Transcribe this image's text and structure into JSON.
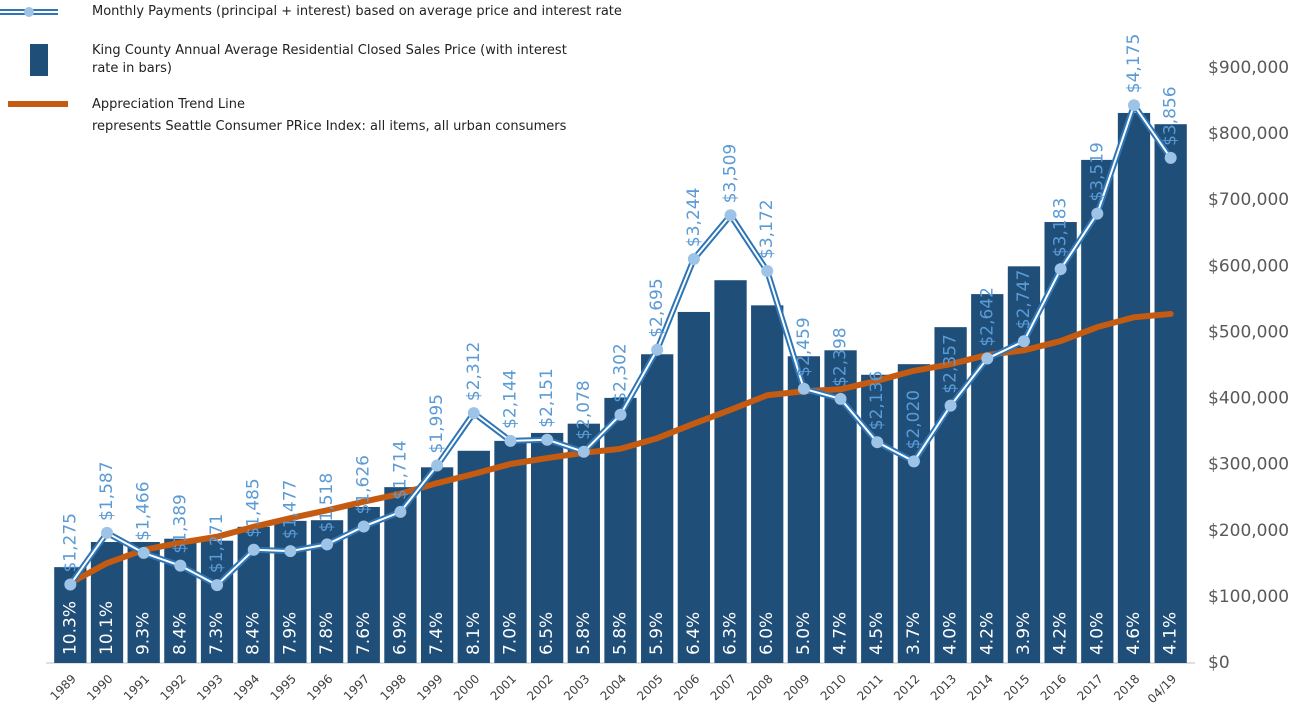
{
  "chart_data": {
    "type": "bar",
    "categories": [
      "1989",
      "1990",
      "1991",
      "1992",
      "1993",
      "1994",
      "1995",
      "1996",
      "1997",
      "1998",
      "1999",
      "2000",
      "2001",
      "2002",
      "2003",
      "2004",
      "2005",
      "2006",
      "2007",
      "2008",
      "2009",
      "2010",
      "2011",
      "2012",
      "2013",
      "2014",
      "2015",
      "2016",
      "2017",
      "2018",
      "04/19"
    ],
    "series": [
      {
        "name": "Monthly Payments (principal + interest) based on average price and interest rate",
        "type": "line",
        "axis": "y2",
        "color": "#2e75b6",
        "marker_color": "#9dc3e6",
        "label_color": "#5b9bd5",
        "values": [
          1275,
          1587,
          1466,
          1389,
          1271,
          1485,
          1477,
          1518,
          1626,
          1714,
          1995,
          2312,
          2144,
          2151,
          2078,
          2302,
          2695,
          3244,
          3509,
          3172,
          2459,
          2398,
          2136,
          2020,
          2357,
          2642,
          2747,
          3183,
          3519,
          4175,
          3856
        ],
        "value_labels": [
          "$1,275",
          "$1,587",
          "$1,466",
          "$1,389",
          "$1,271",
          "$1,485",
          "$1,477",
          "$1,518",
          "$1,626",
          "$1,714",
          "$1,995",
          "$2,312",
          "$2,144",
          "$2,151",
          "$2,078",
          "$2,302",
          "$2,695",
          "$3,244",
          "$3,509",
          "$3,172",
          "$2,459",
          "$2,398",
          "$2,136",
          "$2,020",
          "$2,357",
          "$2,642",
          "$2,747",
          "$3,183",
          "$3,519",
          "$4,175",
          "$3,856"
        ]
      },
      {
        "name": "King County Annual Average Residential Closed Sales Price (with interest rate in bars)",
        "type": "bar",
        "color": "#1f4e79",
        "values": [
          145000,
          183000,
          183000,
          188000,
          185000,
          206000,
          215000,
          216000,
          236000,
          266000,
          296000,
          321000,
          336000,
          348000,
          362000,
          401000,
          467000,
          531000,
          579000,
          541000,
          464000,
          473000,
          436000,
          452000,
          508000,
          558000,
          600000,
          667000,
          761000,
          832000,
          815000
        ]
      },
      {
        "name": "Appreciation Trend Line",
        "description": "represents Seattle Consumer PRice Index: all items, all urban consumers",
        "type": "line",
        "color": "#c55a11",
        "values": [
          121000,
          151000,
          171000,
          182000,
          191000,
          206000,
          219000,
          231000,
          244000,
          256000,
          272000,
          286000,
          301000,
          310000,
          318000,
          324000,
          340000,
          362000,
          383000,
          405000,
          411000,
          414000,
          427000,
          442000,
          452000,
          466000,
          473000,
          487000,
          508000,
          523000,
          528000
        ]
      }
    ],
    "interest_rates": {
      "values": [
        10.3,
        10.1,
        9.3,
        8.4,
        7.3,
        8.4,
        7.9,
        7.8,
        7.6,
        6.9,
        7.4,
        8.1,
        7.0,
        6.5,
        5.8,
        5.8,
        5.9,
        6.4,
        6.3,
        6.0,
        5.0,
        4.7,
        4.5,
        3.7,
        4.0,
        4.2,
        3.9,
        4.2,
        4.0,
        4.6,
        4.1
      ],
      "value_labels": [
        "10.3%",
        "10.1%",
        "9.3%",
        "8.4%",
        "7.3%",
        "8.4%",
        "7.9%",
        "7.8%",
        "7.6%",
        "6.9%",
        "7.4%",
        "8.1%",
        "7.0%",
        "6.5%",
        "5.8%",
        "5.8%",
        "5.9%",
        "6.4%",
        "6.3%",
        "6.0%",
        "5.0%",
        "4.7%",
        "4.5%",
        "3.7%",
        "4.0%",
        "4.2%",
        "3.9%",
        "4.2%",
        "4.0%",
        "4.6%",
        "4.1%"
      ]
    },
    "ylim": [
      0,
      900000
    ],
    "yticks": [
      {
        "value": 0,
        "label": "$0"
      },
      {
        "value": 100000,
        "label": "$100,000"
      },
      {
        "value": 200000,
        "label": "$200,000"
      },
      {
        "value": 300000,
        "label": "$300,000"
      },
      {
        "value": 400000,
        "label": "$400,000"
      },
      {
        "value": 500000,
        "label": "$500,000"
      },
      {
        "value": 600000,
        "label": "$600,000"
      },
      {
        "value": 700000,
        "label": "$700,000"
      },
      {
        "value": 800000,
        "label": "$800,000"
      },
      {
        "value": 900000,
        "label": "$900,000"
      }
    ],
    "y2lim": [
      800,
      4400
    ],
    "grid": false
  }
}
